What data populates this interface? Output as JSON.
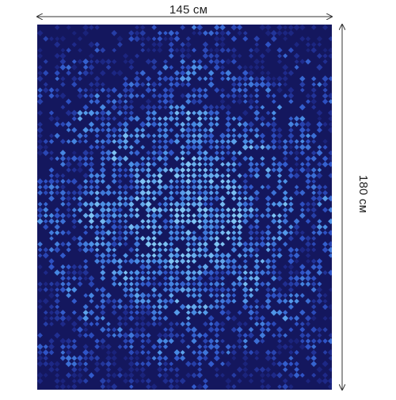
{
  "dimensions": {
    "width_label": "145 см",
    "height_label": "180 см"
  },
  "product_image": {
    "pattern": "blue-mosaic-disco-tiles",
    "colors": {
      "background": "#14175e",
      "dark_tile": "#1e2a8a",
      "mid_tile": "#2f55c8",
      "light_tile": "#4a90e6",
      "highlight_tile": "#7fc4f4"
    }
  },
  "arrow_color": "#333333"
}
